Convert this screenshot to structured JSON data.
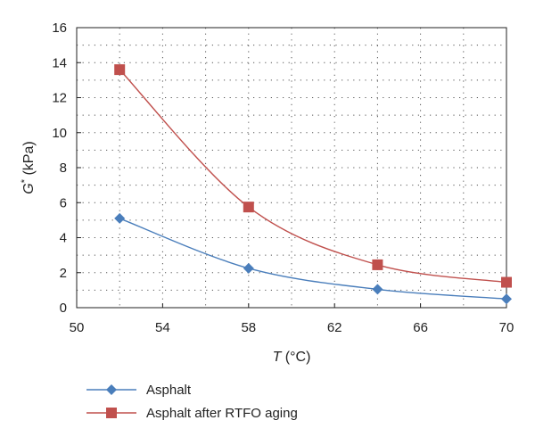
{
  "chart_data": {
    "type": "line",
    "title": "",
    "xlabel_var": "T",
    "xlabel_unit": " (°C)",
    "ylabel_var": "G",
    "ylabel_sup": "*",
    "ylabel_unit": " (kPa)",
    "xlim": [
      50,
      70
    ],
    "ylim": [
      0,
      16
    ],
    "xticks": [
      50,
      54,
      58,
      62,
      66,
      70
    ],
    "yticks": [
      0,
      2,
      4,
      6,
      8,
      10,
      12,
      14,
      16
    ],
    "grid": "dotted",
    "legend_position": "bottom",
    "series": [
      {
        "name": "Asphalt",
        "color": "#4a7ebb",
        "marker": "diamond",
        "x": [
          52,
          58,
          64,
          70
        ],
        "y": [
          5.1,
          2.25,
          1.05,
          0.5
        ]
      },
      {
        "name": "Asphalt after RTFO aging",
        "color": "#c0504d",
        "marker": "square",
        "x": [
          52,
          58,
          64,
          70
        ],
        "y": [
          13.6,
          5.75,
          2.45,
          1.45
        ]
      }
    ]
  }
}
